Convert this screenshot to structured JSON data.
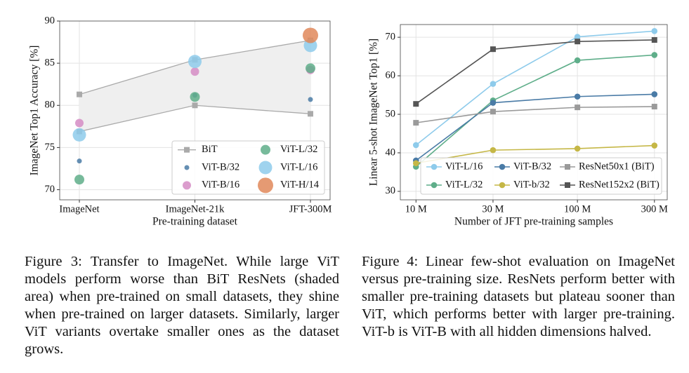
{
  "chart_data": [
    {
      "type": "scatter",
      "xlabel": "Pre-training dataset",
      "ylabel": "ImageNet Top1 Accuracy [%]",
      "categories": [
        "ImageNet",
        "ImageNet-21k",
        "JFT-300M"
      ],
      "ylim": [
        68.8,
        90
      ],
      "yticks": [
        70,
        75,
        80,
        85,
        90
      ],
      "grid": true,
      "legend": "lower right",
      "series": [
        {
          "name": "BiT",
          "color": "#aaaaaa",
          "values": [
            81.3,
            85.4,
            87.7
          ],
          "min_values": [
            76.9,
            80.0,
            79.0
          ]
        },
        {
          "name": "ViT-B/32",
          "color": "#4a7ba6",
          "values": [
            73.4,
            81.2,
            80.7
          ]
        },
        {
          "name": "ViT-B/16",
          "color": "#d58cc4",
          "values": [
            77.9,
            84.0,
            84.2
          ]
        },
        {
          "name": "ViT-L/32",
          "color": "#5fae8a",
          "values": [
            71.2,
            81.0,
            84.4
          ]
        },
        {
          "name": "ViT-L/16",
          "color": "#8ecbeb",
          "values": [
            76.5,
            85.2,
            87.1
          ]
        },
        {
          "name": "ViT-H/14",
          "color": "#e0885a",
          "values": [
            null,
            null,
            88.3
          ]
        }
      ]
    },
    {
      "type": "line",
      "xlabel": "Number of JFT pre-training samples",
      "ylabel": "Linear 5-shot ImageNet Top1 [%]",
      "x": [
        10,
        30,
        100,
        300
      ],
      "xscale": "log",
      "xlim": [
        8,
        360
      ],
      "xticks": [
        {
          "value": 10,
          "label": "10 M"
        },
        {
          "value": 30,
          "label": "30 M"
        },
        {
          "value": 100,
          "label": "100 M"
        },
        {
          "value": 300,
          "label": "300 M"
        }
      ],
      "ylim": [
        27.8,
        73.3
      ],
      "yticks": [
        30,
        40,
        50,
        60,
        70
      ],
      "grid": true,
      "legend": "lower right",
      "series": [
        {
          "name": "ViT-L/16",
          "color": "#8ecbeb",
          "values": [
            42.0,
            57.9,
            70.1,
            71.6
          ]
        },
        {
          "name": "ViT-L/32",
          "color": "#5fae8a",
          "values": [
            36.4,
            53.6,
            64.0,
            65.4
          ]
        },
        {
          "name": "ViT-B/32",
          "color": "#4a7ba6",
          "values": [
            38.0,
            53.0,
            54.6,
            55.2
          ]
        },
        {
          "name": "ViT-b/32",
          "color": "#c5b746",
          "values": [
            37.3,
            40.7,
            41.1,
            41.9
          ]
        },
        {
          "name": "ResNet50x1 (BiT)",
          "color": "#9a9a9a",
          "values": [
            47.8,
            50.7,
            51.8,
            52.0
          ]
        },
        {
          "name": "ResNet152x2 (BiT)",
          "color": "#555555",
          "values": [
            52.7,
            66.9,
            68.9,
            69.3
          ]
        }
      ]
    }
  ],
  "captions": [
    "Figure 3: Transfer to ImageNet. While large ViT models perform worse than BiT ResNets (shaded area) when pre-trained on small datasets, they shine when pre-trained on larger datasets. Similarly, larger ViT variants overtake smaller ones as the dataset grows.",
    "Figure 4: Linear few-shot evaluation on ImageNet versus pre-training size. ResNets perform better with smaller pre-training datasets but plateau sooner than ViT, which performs better with larger pre-training. ViT-b is ViT-B with all hidden dimensions halved."
  ]
}
